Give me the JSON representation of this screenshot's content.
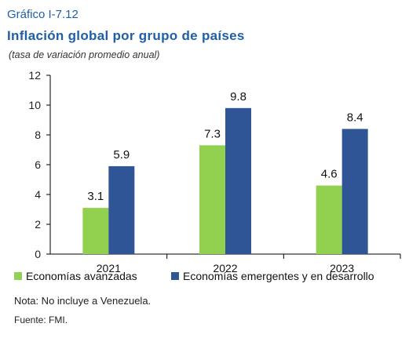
{
  "header": {
    "label": "Gráfico I-7.12",
    "title": "Inflación global por grupo de países",
    "subtitle": "(tasa de variación promedio anual)"
  },
  "footer": {
    "note": "Nota: No incluye a Venezuela.",
    "source": "Fuente: FMI."
  },
  "chart_data": {
    "type": "bar",
    "title": "Inflación global por grupo de países",
    "subtitle": "(tasa de variación promedio anual)",
    "categories": [
      "2021",
      "2022",
      "2023"
    ],
    "series": [
      {
        "name": "Economías avanzadas",
        "values": [
          3.1,
          7.3,
          4.6
        ],
        "labels": [
          "3.1",
          "7.3",
          "4.6"
        ],
        "color": "#92d050"
      },
      {
        "name": "Economías emergentes y en desarrollo",
        "values": [
          5.9,
          9.8,
          8.4
        ],
        "labels": [
          "5.9",
          "9.8",
          "8.4"
        ],
        "color": "#2f5597"
      }
    ],
    "ylim": [
      0,
      12
    ],
    "yticks": [
      0,
      2,
      4,
      6,
      8,
      10,
      12
    ],
    "grid": false,
    "legend": "bottom",
    "xlabel": "",
    "ylabel": ""
  }
}
